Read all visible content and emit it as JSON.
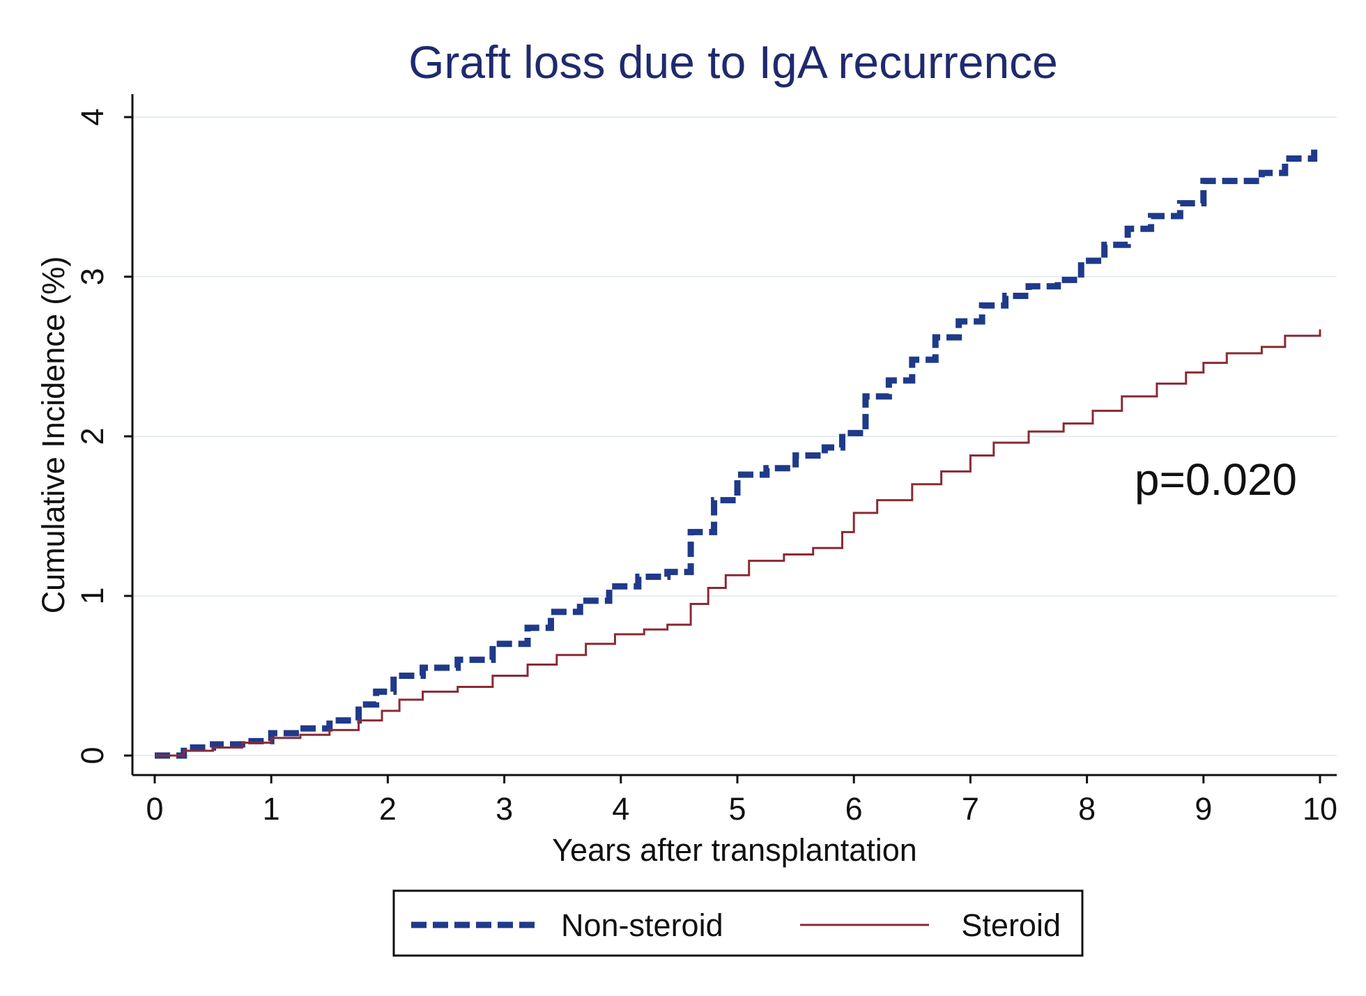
{
  "chart_data": {
    "type": "line",
    "step": true,
    "title": "Graft loss due to IgA recurrence",
    "xlabel": "Years after transplantation",
    "ylabel": "Cumulative Incidence (%)",
    "xlim": [
      0,
      10
    ],
    "ylim": [
      0,
      4
    ],
    "xticks": [
      "0",
      "1",
      "2",
      "3",
      "4",
      "5",
      "6",
      "7",
      "8",
      "9",
      "10"
    ],
    "yticks": [
      "0",
      "1",
      "2",
      "3",
      "4"
    ],
    "grid": true,
    "annotation": "p=0.020",
    "legend_position": "bottom",
    "series": [
      {
        "name": "Non-steroid",
        "color": "#1f3a8a",
        "style": "dashed",
        "x": [
          0,
          0.25,
          0.5,
          0.75,
          1.0,
          1.25,
          1.5,
          1.75,
          1.9,
          2.05,
          2.3,
          2.6,
          2.9,
          3.2,
          3.4,
          3.65,
          3.9,
          4.15,
          4.4,
          4.6,
          4.8,
          5.0,
          5.25,
          5.5,
          5.75,
          5.9,
          6.1,
          6.3,
          6.5,
          6.7,
          6.9,
          7.1,
          7.3,
          7.5,
          7.75,
          7.95,
          8.15,
          8.35,
          8.55,
          8.8,
          9.0,
          9.25,
          9.5,
          9.7,
          9.95
        ],
        "y": [
          0,
          0.05,
          0.07,
          0.09,
          0.14,
          0.17,
          0.22,
          0.32,
          0.4,
          0.5,
          0.55,
          0.6,
          0.7,
          0.8,
          0.9,
          0.97,
          1.06,
          1.12,
          1.15,
          1.4,
          1.6,
          1.76,
          1.8,
          1.88,
          1.93,
          2.02,
          2.25,
          2.35,
          2.48,
          2.62,
          2.72,
          2.82,
          2.88,
          2.94,
          2.98,
          3.1,
          3.2,
          3.3,
          3.38,
          3.46,
          3.6,
          3.6,
          3.65,
          3.74,
          3.8
        ]
      },
      {
        "name": "Steroid",
        "color": "#8a2a35",
        "style": "solid",
        "x": [
          0,
          0.25,
          0.5,
          0.75,
          1.0,
          1.25,
          1.5,
          1.75,
          1.95,
          2.1,
          2.3,
          2.6,
          2.9,
          3.2,
          3.45,
          3.7,
          3.95,
          4.2,
          4.4,
          4.6,
          4.75,
          4.9,
          5.1,
          5.4,
          5.65,
          5.9,
          6.0,
          6.2,
          6.5,
          6.75,
          7.0,
          7.2,
          7.5,
          7.8,
          8.05,
          8.3,
          8.6,
          8.85,
          9.0,
          9.2,
          9.5,
          9.7,
          10.0
        ],
        "y": [
          0,
          0.03,
          0.05,
          0.08,
          0.11,
          0.13,
          0.16,
          0.22,
          0.28,
          0.35,
          0.4,
          0.43,
          0.5,
          0.57,
          0.63,
          0.7,
          0.76,
          0.79,
          0.82,
          0.95,
          1.05,
          1.13,
          1.22,
          1.26,
          1.3,
          1.4,
          1.52,
          1.6,
          1.7,
          1.78,
          1.88,
          1.96,
          2.03,
          2.08,
          2.16,
          2.25,
          2.33,
          2.4,
          2.46,
          2.52,
          2.56,
          2.63,
          2.67
        ]
      }
    ]
  }
}
